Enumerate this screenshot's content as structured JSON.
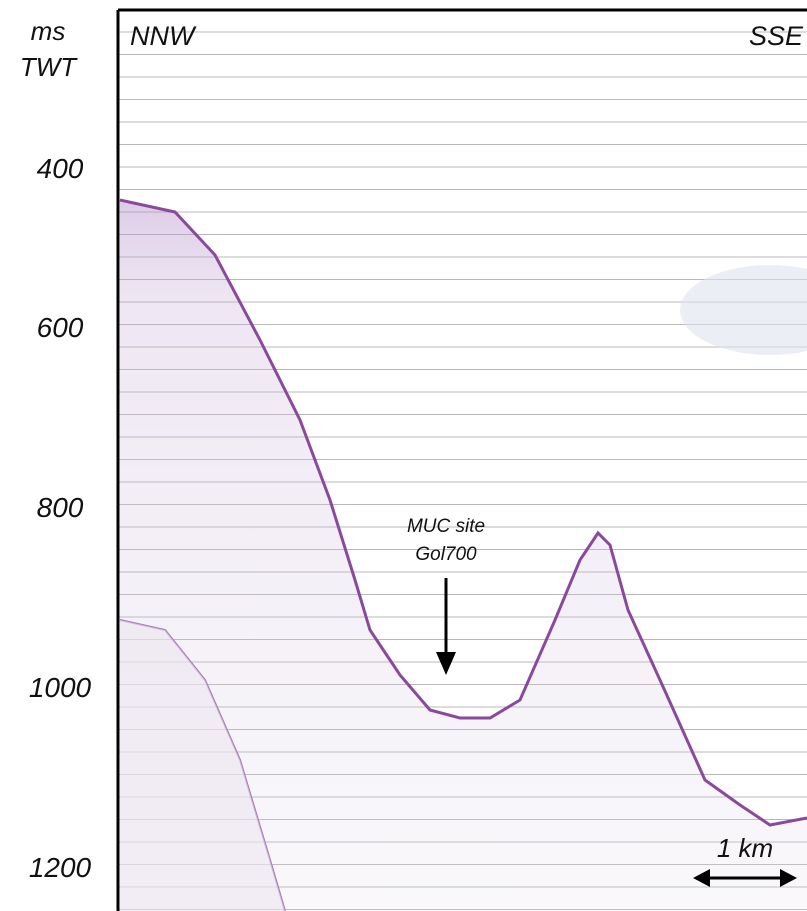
{
  "axis": {
    "label_lines": [
      "ms",
      "TWT"
    ],
    "ticks": [
      400,
      600,
      800,
      1000,
      1200
    ]
  },
  "directions": {
    "left": "NNW",
    "right": "SSE"
  },
  "annotation": {
    "lines": [
      "MUC site",
      "Gol700"
    ]
  },
  "scale_bar": {
    "label": "1 km"
  }
}
